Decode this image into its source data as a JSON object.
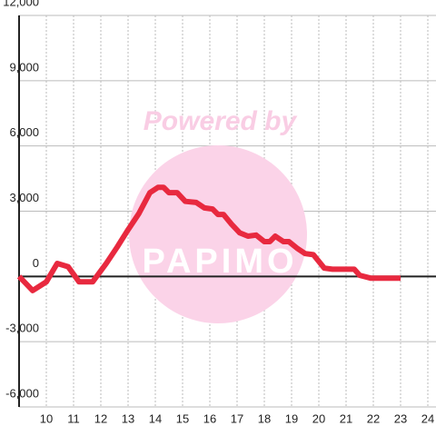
{
  "chart_data": {
    "type": "line",
    "watermark": [
      "Powered by",
      "PAPIMO"
    ],
    "x": [
      9,
      9.5,
      10,
      10.4,
      10.8,
      11.2,
      11.7,
      12.2,
      12.6,
      13,
      13.4,
      13.8,
      14.1,
      14.3,
      14.5,
      14.8,
      15.1,
      15.5,
      15.8,
      16.1,
      16.3,
      16.5,
      16.8,
      17.1,
      17.4,
      17.7,
      18,
      18.2,
      18.4,
      18.7,
      18.9,
      19.2,
      19.5,
      19.8,
      20.2,
      20.5,
      21.3,
      21.5,
      21.9,
      23
    ],
    "series": [
      {
        "color": "#e8293f",
        "values": [
          0,
          -650,
          -250,
          600,
          450,
          -250,
          -250,
          600,
          1350,
          2150,
          2900,
          3850,
          4100,
          4100,
          3850,
          3850,
          3450,
          3400,
          3150,
          3100,
          2850,
          2850,
          2400,
          2000,
          1850,
          1900,
          1600,
          1600,
          1850,
          1600,
          1600,
          1300,
          1050,
          1000,
          380,
          330,
          330,
          50,
          -80,
          -80
        ]
      }
    ],
    "xlim": [
      9,
      24.3
    ],
    "xticks": [
      10,
      11,
      12,
      13,
      14,
      15,
      16,
      17,
      18,
      19,
      20,
      21,
      22,
      23,
      24
    ],
    "ylim": [
      -6000,
      12000
    ],
    "yticks": [
      {
        "value": -6000,
        "label": "-6,000"
      },
      {
        "value": -3000,
        "label": "-3,000"
      },
      0,
      {
        "value": 3000,
        "label": "3,000"
      },
      {
        "value": 6000,
        "label": "6,000"
      },
      {
        "value": 9000,
        "label": "9,000"
      },
      {
        "value": 12000,
        "label": "12,000"
      }
    ],
    "grid": true
  }
}
